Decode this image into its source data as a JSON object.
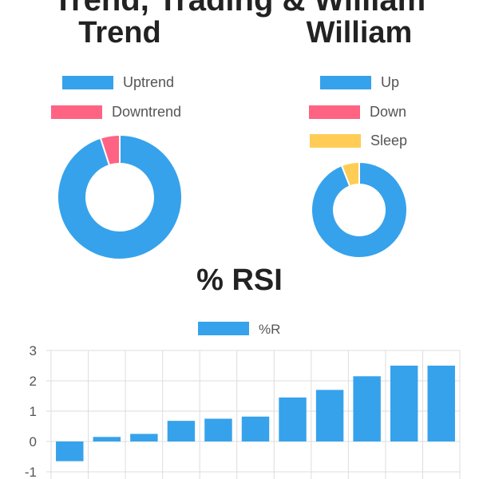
{
  "partial_heading": "Trend, Trading & William",
  "colors": {
    "blue": "#36a2eb",
    "pink": "#ff6384",
    "yellow": "#ffcd56"
  },
  "trend": {
    "title": "Trend",
    "legend": [
      {
        "label": "Uptrend",
        "color": "#36a2eb"
      },
      {
        "label": "Downtrend",
        "color": "#ff6384"
      }
    ]
  },
  "william": {
    "title": "William",
    "legend": [
      {
        "label": "Up",
        "color": "#36a2eb"
      },
      {
        "label": "Down",
        "color": "#ff6384"
      },
      {
        "label": "Sleep",
        "color": "#ffcd56"
      }
    ]
  },
  "rsi": {
    "title": "% RSI",
    "legend_label": "%R"
  },
  "chart_data": [
    {
      "type": "pie",
      "title": "Trend",
      "labels": [
        "Uptrend",
        "Downtrend"
      ],
      "values": [
        95,
        5
      ],
      "colors": [
        "#36a2eb",
        "#ff6384"
      ],
      "legend": "top"
    },
    {
      "type": "pie",
      "title": "William",
      "labels": [
        "Up",
        "Down",
        "Sleep"
      ],
      "values": [
        94,
        0,
        6
      ],
      "colors": [
        "#36a2eb",
        "#ff6384",
        "#ffcd56"
      ],
      "legend": "top"
    },
    {
      "type": "bar",
      "title": "% RSI",
      "series": [
        {
          "name": "%R",
          "values": [
            -0.65,
            0.15,
            0.25,
            0.68,
            0.75,
            0.82,
            1.45,
            1.7,
            2.15,
            2.5,
            2.5
          ]
        }
      ],
      "color": "#36a2eb",
      "yticks": [
        3,
        2,
        1,
        0,
        -1
      ],
      "ylim": [
        -1,
        3
      ],
      "grid": true,
      "legend": "top"
    }
  ]
}
